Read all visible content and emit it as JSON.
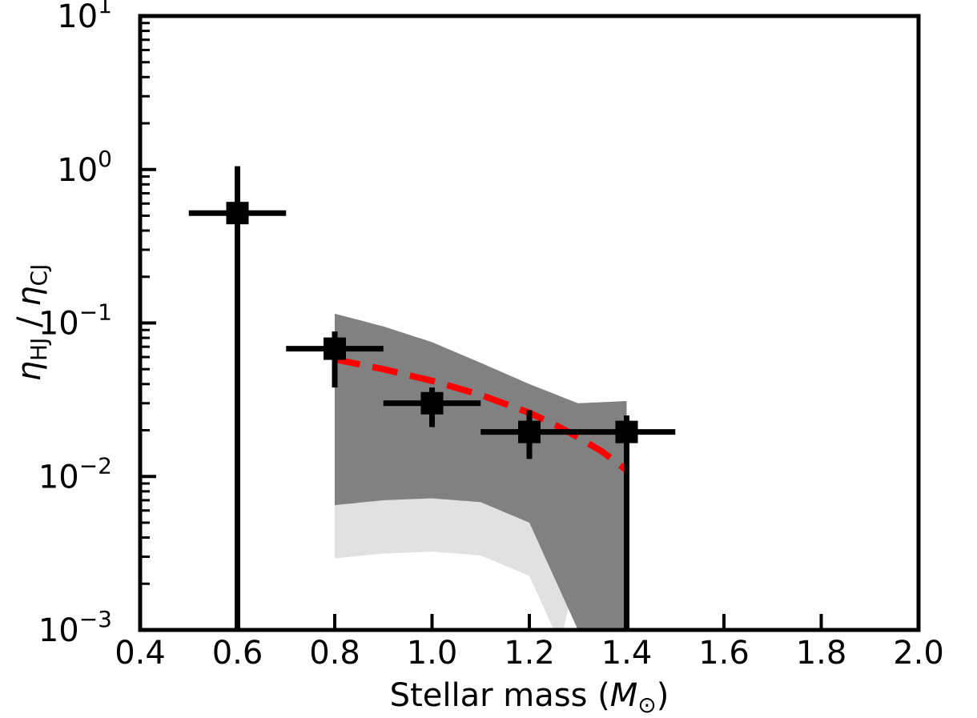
{
  "chart_data": {
    "type": "scatter",
    "title": "",
    "xlabel": "Stellar mass (M⊙)",
    "xlabel_parts": {
      "text": "Stellar mass (",
      "symbol": "M",
      "subscript": "⊙",
      "close": ")"
    },
    "ylabel": "ηHJ / ηCJ",
    "ylabel_parts": {
      "eta": "η",
      "sub1": "HJ",
      "sep": " / ",
      "sub2": "CJ"
    },
    "xlim": [
      0.4,
      2.0
    ],
    "ylim": [
      0.001,
      10
    ],
    "yscale": "log",
    "grid": false,
    "x_ticks": [
      "0.4",
      "0.6",
      "0.8",
      "1.0",
      "1.2",
      "1.4",
      "1.6",
      "1.8",
      "2.0"
    ],
    "y_ticks": [
      {
        "base": "10",
        "exp": "1"
      },
      {
        "base": "10",
        "exp": "0"
      },
      {
        "base": "10",
        "exp": "−1"
      },
      {
        "base": "10",
        "exp": "−2"
      },
      {
        "base": "10",
        "exp": "−3"
      }
    ],
    "points": [
      {
        "x": 0.6,
        "y": 0.52,
        "xerr": 0.1,
        "ylo": 0.001,
        "yhi": 1.05
      },
      {
        "x": 0.8,
        "y": 0.068,
        "xerr": 0.1,
        "ylo": 0.038,
        "yhi": 0.088
      },
      {
        "x": 1.0,
        "y": 0.03,
        "xerr": 0.1,
        "ylo": 0.021,
        "yhi": 0.038
      },
      {
        "x": 1.2,
        "y": 0.0195,
        "xerr": 0.1,
        "ylo": 0.013,
        "yhi": 0.027
      },
      {
        "x": 1.4,
        "y": 0.0195,
        "xerr": 0.1,
        "ylo": 0.001,
        "yhi": 0.025
      }
    ],
    "fit_curve": {
      "x": [
        0.8,
        0.9,
        1.0,
        1.1,
        1.2,
        1.25,
        1.3,
        1.35,
        1.4
      ],
      "y": [
        0.058,
        0.05,
        0.042,
        0.034,
        0.026,
        0.022,
        0.018,
        0.0145,
        0.011
      ]
    },
    "posterior_band": {
      "x": [
        0.8,
        0.9,
        1.0,
        1.1,
        1.2,
        1.3,
        1.4
      ],
      "upper": [
        0.115,
        0.095,
        0.075,
        0.055,
        0.04,
        0.03,
        0.031
      ],
      "lower": [
        0.0065,
        0.007,
        0.0072,
        0.0068,
        0.005,
        0.001,
        0.001
      ]
    },
    "colors": {
      "points": "#000000",
      "fit": "#ff0000",
      "band": "#7a7a7a",
      "band_faint": "#d9d9d9"
    }
  }
}
